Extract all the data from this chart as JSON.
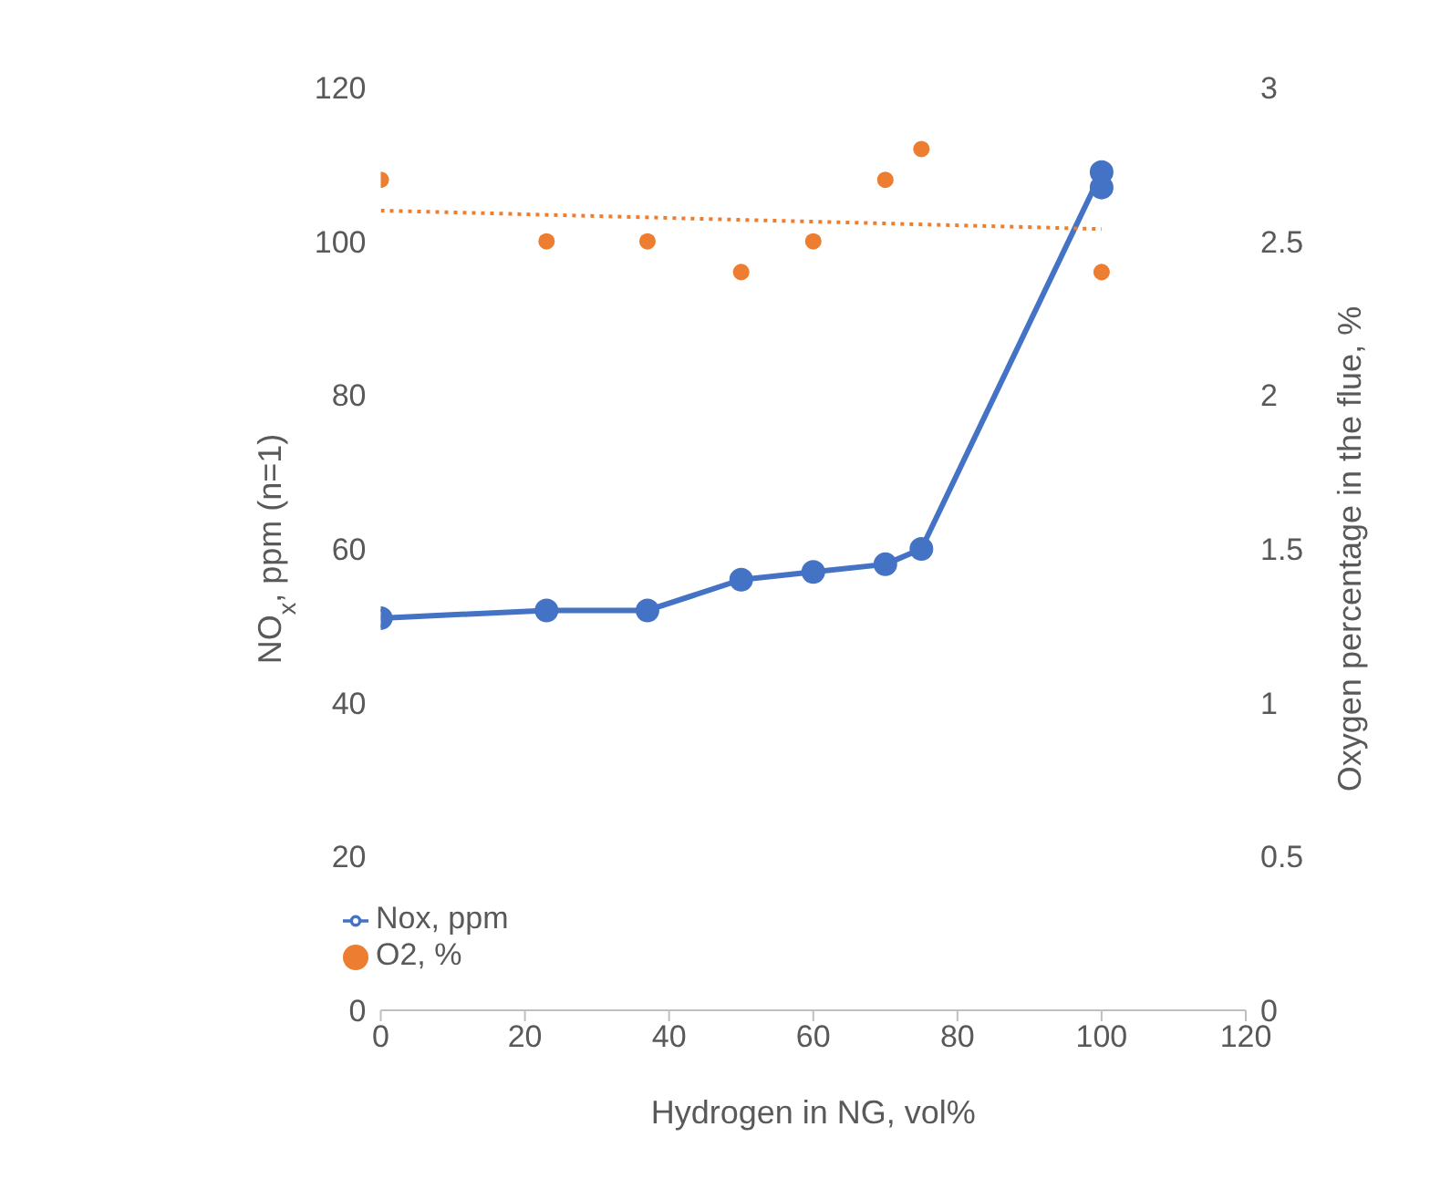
{
  "chart_data": {
    "type": "line",
    "xlabel": "Hydrogen in NG, vol%",
    "ylabel": "NO$_{x}$, ppm (n=1)",
    "y2label": "Oxygen percentage in the flue, %",
    "xlim": [
      0,
      120
    ],
    "xticks": [
      0,
      20,
      40,
      60,
      80,
      100,
      120
    ],
    "ylim": [
      0,
      120
    ],
    "yticks": [
      0,
      20,
      40,
      60,
      80,
      100,
      120
    ],
    "y2lim": [
      0,
      3
    ],
    "y2ticks": [
      0,
      0.5,
      1,
      1.5,
      2,
      2.5,
      3
    ],
    "legend": "bottom left",
    "series": [
      {
        "name": "Nox, ppm",
        "color": "#4472c4",
        "marker": "circle",
        "line_style": "solid",
        "x": [
          0,
          23,
          37,
          50,
          60,
          70,
          75,
          100,
          100
        ],
        "values": [
          51,
          52,
          52,
          56,
          57,
          58,
          60,
          109,
          107
        ]
      },
      {
        "name": "O2, %",
        "type": "scatter",
        "axis": "y2",
        "color": "#ed7d31",
        "marker": "circle",
        "x": [
          0,
          23,
          37,
          50,
          60,
          70,
          75,
          100
        ],
        "values": [
          2.7,
          2.5,
          2.5,
          2.4,
          2.5,
          2.7,
          2.8,
          2.4
        ]
      },
      {
        "type": "line",
        "axis": "y2",
        "color": "#ed7d31",
        "marker": "none",
        "line_style": "dotted",
        "x": [
          0,
          100
        ],
        "values": [
          2.6,
          2.54
        ]
      }
    ]
  }
}
